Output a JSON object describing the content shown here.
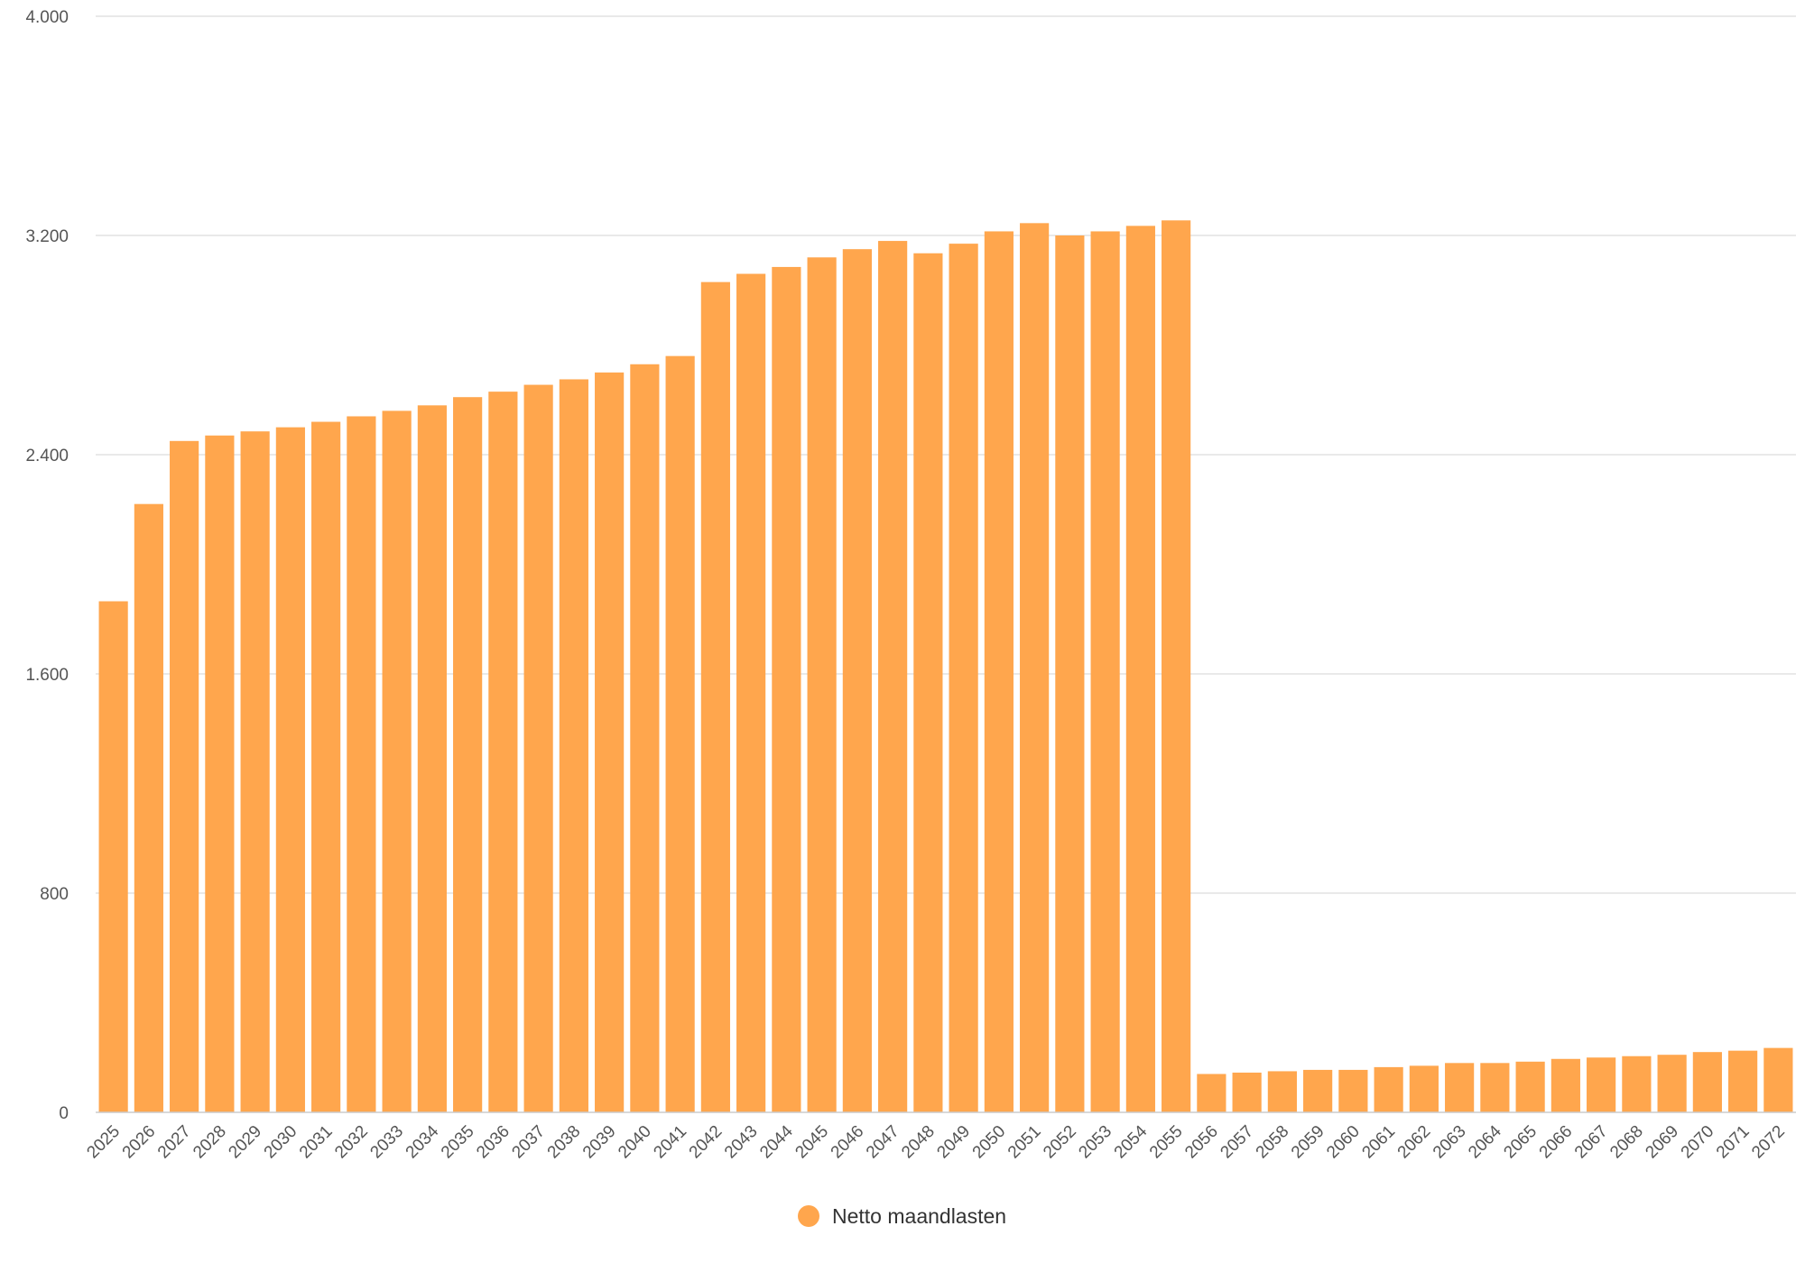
{
  "chart_data": {
    "type": "bar",
    "categories": [
      "2025",
      "2026",
      "2027",
      "2028",
      "2029",
      "2030",
      "2031",
      "2032",
      "2033",
      "2034",
      "2035",
      "2036",
      "2037",
      "2038",
      "2039",
      "2040",
      "2041",
      "2042",
      "2043",
      "2044",
      "2045",
      "2046",
      "2047",
      "2048",
      "2049",
      "2050",
      "2051",
      "2052",
      "2053",
      "2054",
      "2055",
      "2056",
      "2057",
      "2058",
      "2059",
      "2060",
      "2061",
      "2062",
      "2063",
      "2064",
      "2065",
      "2066",
      "2067",
      "2068",
      "2069",
      "2070",
      "2071",
      "2072"
    ],
    "series": [
      {
        "name": "Netto maandlasten",
        "color": "#FFA64D",
        "values": [
          1865,
          2220,
          2450,
          2470,
          2485,
          2500,
          2520,
          2540,
          2560,
          2580,
          2610,
          2630,
          2655,
          2675,
          2700,
          2730,
          2760,
          3030,
          3060,
          3085,
          3120,
          3150,
          3180,
          3135,
          3170,
          3215,
          3245,
          3200,
          3215,
          3235,
          3255,
          140,
          145,
          150,
          155,
          155,
          165,
          170,
          180,
          180,
          185,
          195,
          200,
          205,
          210,
          220,
          225,
          235
        ]
      }
    ],
    "title": "",
    "xlabel": "",
    "ylabel": "",
    "ylim": [
      0,
      4000
    ],
    "yticks": [
      0,
      800,
      1600,
      2400,
      3200,
      4000
    ],
    "ytick_labels": [
      "0",
      "800",
      "1.600",
      "2.400",
      "3.200",
      "4.000"
    ],
    "grid": true,
    "legend_position": "bottom-center"
  }
}
